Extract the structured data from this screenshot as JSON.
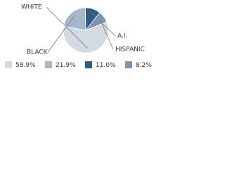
{
  "chart_data": {
    "type": "pie",
    "categories": [
      "WHITE",
      "BLACK",
      "A.I.",
      "HISPANIC"
    ],
    "values": [
      58.9,
      21.9,
      11.0,
      8.2
    ],
    "value_labels": [
      "58.9%",
      "21.9%",
      "11.0%",
      "8.2%"
    ],
    "colors": [
      "#d3dae3",
      "#a6b7c9",
      "#2f5d80",
      "#7b93ab"
    ]
  }
}
